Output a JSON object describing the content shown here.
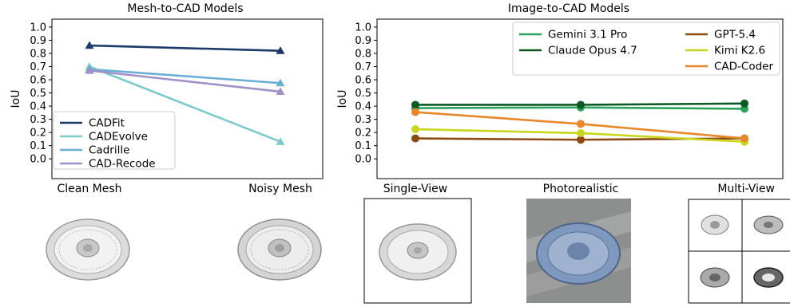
{
  "chart_data": [
    {
      "type": "line",
      "title": "Mesh-to-CAD Models",
      "xlabel": "",
      "ylabel": "IoU",
      "categories": [
        "Clean Mesh",
        "Noisy Mesh"
      ],
      "yticks": [
        "0.0",
        "0.1",
        "0.2",
        "0.3",
        "0.4",
        "0.5",
        "0.6",
        "0.7",
        "0.8",
        "0.9",
        "1.0"
      ],
      "ylim": [
        -0.15,
        1.06
      ],
      "legend_position": "lower-left",
      "series": [
        {
          "name": "CADFit",
          "color": "#1b3a6b",
          "marker": "triangle",
          "values": [
            0.86,
            0.82
          ]
        },
        {
          "name": "CADEvolve",
          "color": "#7ccbc9",
          "marker": "triangle",
          "values": [
            0.7,
            0.13
          ]
        },
        {
          "name": "Cadrille",
          "color": "#6baed6",
          "marker": "triangle",
          "values": [
            0.68,
            0.575
          ]
        },
        {
          "name": "CAD-Recode",
          "color": "#a291c9",
          "marker": "triangle",
          "values": [
            0.67,
            0.51
          ]
        }
      ]
    },
    {
      "type": "line",
      "title": "Image-to-CAD Models",
      "xlabel": "",
      "ylabel": "IoU",
      "categories": [
        "Single-View",
        "Photorealistic",
        "Multi-View"
      ],
      "yticks": [
        "0.0",
        "0.1",
        "0.2",
        "0.3",
        "0.4",
        "0.5",
        "0.6",
        "0.7",
        "0.8",
        "0.9",
        "1.0"
      ],
      "ylim": [
        -0.15,
        1.06
      ],
      "legend_position": "upper-right",
      "series": [
        {
          "name": "Gemini 3.1 Pro",
          "color": "#2ca25f",
          "marker": "circle",
          "values": [
            0.385,
            0.39,
            0.38
          ]
        },
        {
          "name": "Claude Opus 4.7",
          "color": "#0b5a24",
          "marker": "circle",
          "values": [
            0.41,
            0.41,
            0.42
          ]
        },
        {
          "name": "GPT-5.4",
          "color": "#8c4a12",
          "marker": "circle",
          "values": [
            0.155,
            0.145,
            0.155
          ]
        },
        {
          "name": "Kimi K2.6",
          "color": "#c9d61c",
          "marker": "circle",
          "values": [
            0.225,
            0.195,
            0.13
          ]
        },
        {
          "name": "CAD-Coder",
          "color": "#e6872a",
          "marker": "circle",
          "values": [
            0.355,
            0.265,
            0.155
          ]
        }
      ]
    }
  ]
}
